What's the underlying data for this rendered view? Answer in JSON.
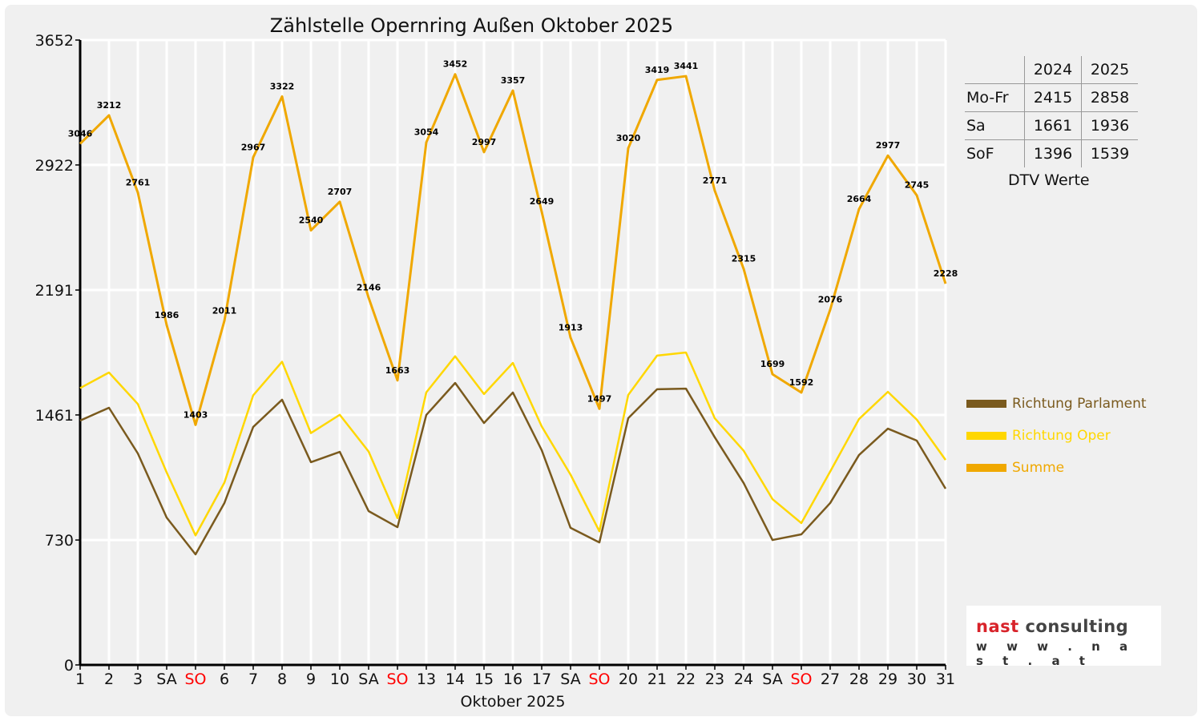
{
  "chart_data": {
    "type": "line",
    "title": "Zählstelle Opernring Außen Oktober 2025",
    "xlabel": "Oktober 2025",
    "ylabel": "",
    "ylim": [
      0,
      3652
    ],
    "yticks": [
      0,
      730,
      1461,
      2191,
      2922,
      3652
    ],
    "grid": true,
    "legend_position": "right",
    "x": [
      1,
      2,
      3,
      4,
      5,
      6,
      7,
      8,
      9,
      10,
      11,
      12,
      13,
      14,
      15,
      16,
      17,
      18,
      19,
      20,
      21,
      22,
      23,
      24,
      25,
      26,
      27,
      28,
      29,
      30,
      31
    ],
    "xtick_labels": [
      "1",
      "2",
      "3",
      "SA",
      "SO",
      "6",
      "7",
      "8",
      "9",
      "10",
      "SA",
      "SO",
      "13",
      "14",
      "15",
      "16",
      "17",
      "SA",
      "SO",
      "20",
      "21",
      "22",
      "23",
      "24",
      "SA",
      "SO",
      "27",
      "28",
      "29",
      "30",
      "31"
    ],
    "sunday_label_color": "#ff0000",
    "series": [
      {
        "name": "Richtung Parlament",
        "color": "#7a5a1e",
        "values": [
          1428,
          1503,
          1236,
          861,
          646,
          946,
          1391,
          1550,
          1185,
          1245,
          899,
          805,
          1461,
          1648,
          1414,
          1592,
          1255,
          801,
          716,
          1442,
          1611,
          1615,
          1330,
          1063,
          730,
          763,
          946,
          1227,
          1381,
          1311,
          1030
        ]
      },
      {
        "name": "Richtung Oper",
        "color": "#ffd700",
        "values": [
          1618,
          1709,
          1525,
          1125,
          757,
          1065,
          1576,
          1772,
          1355,
          1462,
          1247,
          858,
          1593,
          1804,
          1583,
          1765,
          1394,
          1112,
          781,
          1578,
          1808,
          1826,
          1441,
          1252,
          969,
          829,
          1130,
          1437,
          1596,
          1434,
          1198
        ]
      },
      {
        "name": "Summe",
        "color": "#f0a800",
        "data_labels": true,
        "values": [
          3046,
          3212,
          2761,
          1986,
          1403,
          2011,
          2967,
          3322,
          2540,
          2707,
          2146,
          1663,
          3054,
          3452,
          2997,
          3357,
          2649,
          1913,
          1497,
          3020,
          3419,
          3441,
          2771,
          2315,
          1699,
          1592,
          2076,
          2664,
          2977,
          2745,
          2228
        ]
      }
    ]
  },
  "dtv_table": {
    "caption": "DTV Werte",
    "columns": [
      "2024",
      "2025"
    ],
    "rows": [
      {
        "label": "Mo-Fr",
        "v2024": "2415",
        "v2025": "2858"
      },
      {
        "label": "Sa",
        "v2024": "1661",
        "v2025": "1936"
      },
      {
        "label": "SoF",
        "v2024": "1396",
        "v2025": "1539"
      }
    ]
  },
  "logo": {
    "brand_red": "nast",
    "brand_gray": "consulting",
    "url": "w w w . n a s t . a t"
  }
}
